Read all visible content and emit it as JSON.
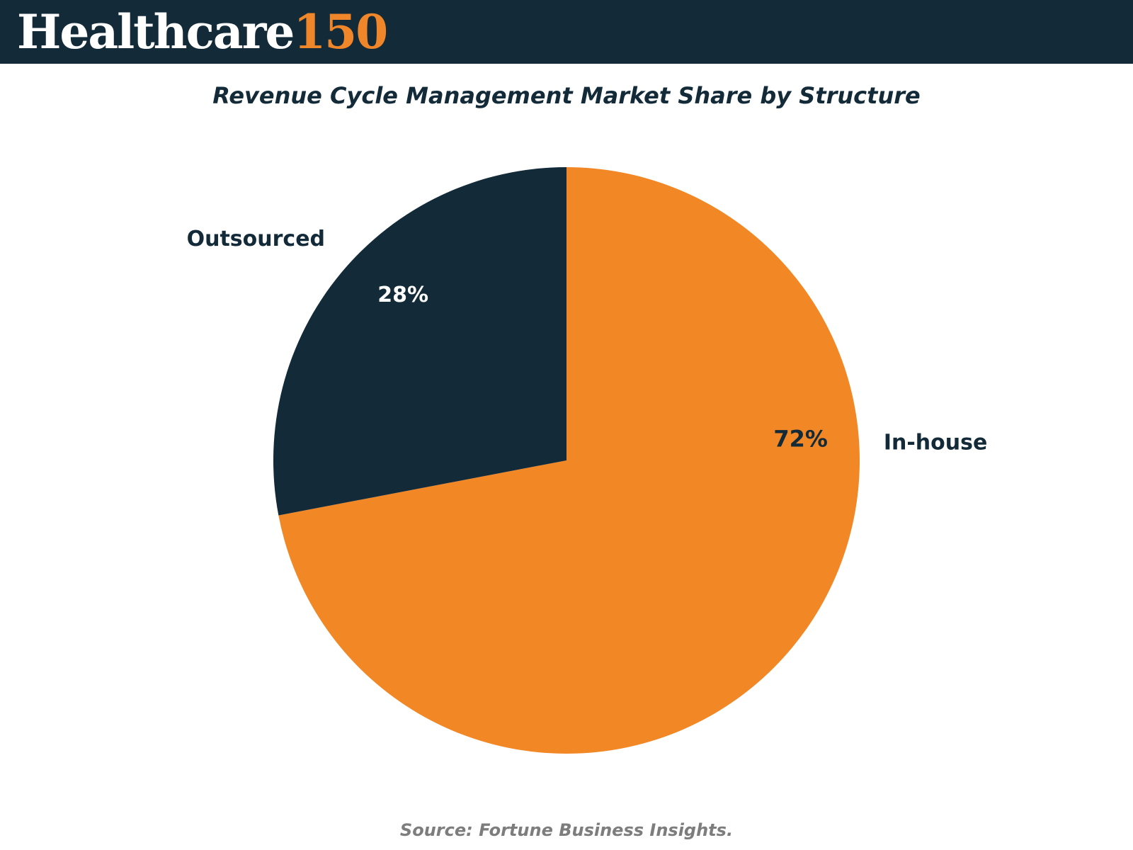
{
  "header": {
    "logo_word": "Healthcare",
    "logo_number": "150"
  },
  "chart_data": {
    "type": "pie",
    "title": "Revenue Cycle Management Market Share by Structure",
    "slices": [
      {
        "label": "Outsourced",
        "value": 28,
        "value_label": "28%",
        "color": "#132a38",
        "value_label_color": "#ffffff"
      },
      {
        "label": "In-house",
        "value": 72,
        "value_label": "72%",
        "color": "#f28726",
        "value_label_color": "#132a38"
      }
    ],
    "start": "12 o'clock",
    "direction": "counterclockwise from top for Outsourced, remainder In-house"
  },
  "source": "Source: Fortune Business Insights."
}
